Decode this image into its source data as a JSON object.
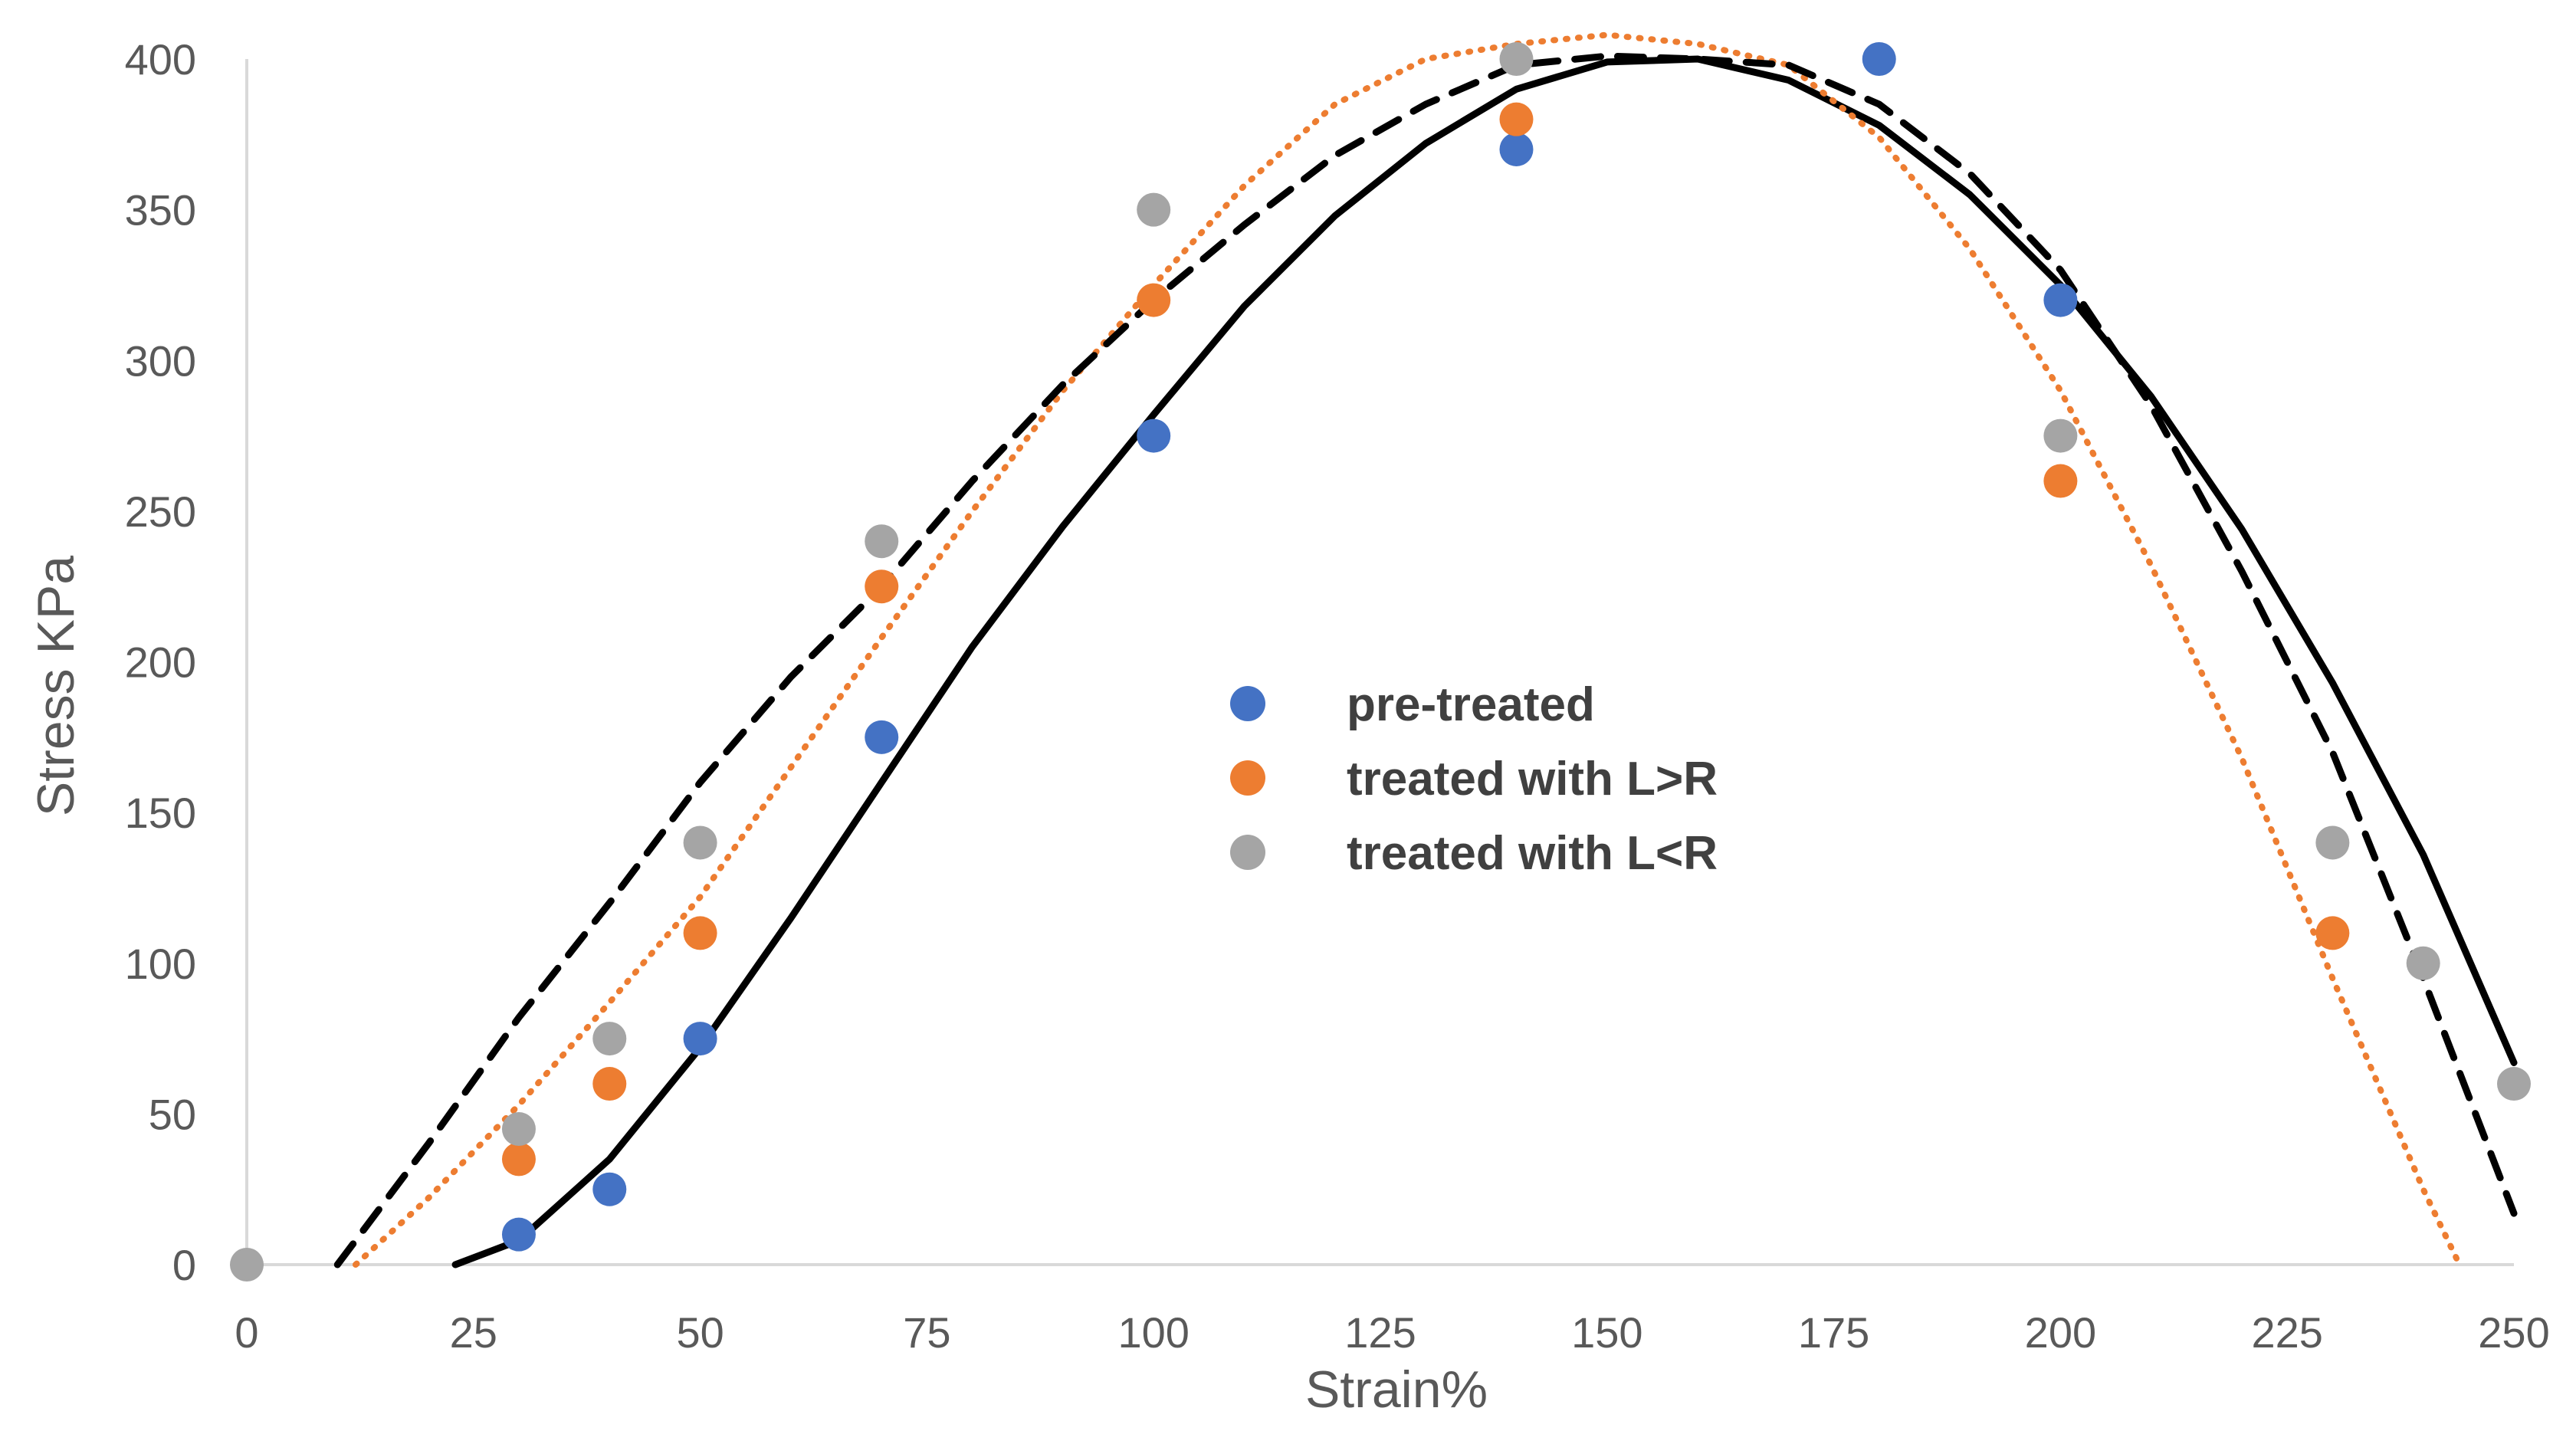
{
  "chart_data": {
    "type": "scatter",
    "title": "",
    "xlabel": "Strain%",
    "ylabel": "Stress KPa",
    "xlim": [
      0,
      250
    ],
    "ylim": [
      0,
      400
    ],
    "xticks": [
      0,
      25,
      50,
      75,
      100,
      125,
      150,
      175,
      200,
      225,
      250
    ],
    "yticks": [
      0,
      50,
      100,
      150,
      200,
      250,
      300,
      350,
      400
    ],
    "xtick_labels": [
      "0",
      "25",
      "50",
      "75",
      "100",
      "125",
      "150",
      "175",
      "200",
      "225",
      "250"
    ],
    "ytick_labels": [
      "0",
      "50",
      "100",
      "150",
      "200",
      "250",
      "300",
      "350",
      "400"
    ],
    "grid": false,
    "legend_position": "center",
    "series": [
      {
        "name": "pre-treated",
        "color": "#4472C4",
        "x": [
          30,
          40,
          50,
          70,
          100,
          140,
          180,
          200
        ],
        "y": [
          10,
          25,
          75,
          175,
          275,
          370,
          400,
          320
        ]
      },
      {
        "name": "treated with L>R",
        "color": "#ED7D31",
        "x": [
          30,
          40,
          50,
          70,
          100,
          140,
          200,
          230
        ],
        "y": [
          35,
          60,
          110,
          225,
          320,
          380,
          260,
          110
        ]
      },
      {
        "name": "treated with L<R",
        "color": "#A5A5A5",
        "x": [
          0,
          30,
          40,
          50,
          70,
          100,
          140,
          200,
          230,
          240,
          250
        ],
        "y": [
          0,
          45,
          75,
          140,
          240,
          350,
          400,
          275,
          140,
          100,
          60
        ]
      }
    ],
    "trendlines": [
      {
        "series": "pre-treated",
        "style": "solid",
        "color": "#000000",
        "x": [
          23,
          30,
          40,
          50,
          60,
          70,
          80,
          90,
          100,
          110,
          120,
          130,
          140,
          150,
          160,
          170,
          180,
          190,
          200,
          210,
          220,
          230,
          240,
          250
        ],
        "y": [
          0,
          8,
          35,
          72,
          115,
          160,
          205,
          245,
          282,
          318,
          348,
          372,
          390,
          399,
          400,
          393,
          378,
          355,
          325,
          288,
          244,
          193,
          136,
          67
        ]
      },
      {
        "series": "treated with L>R",
        "style": "dotted",
        "color": "#ED7D31",
        "x": [
          12,
          20,
          30,
          40,
          50,
          60,
          70,
          80,
          90,
          100,
          110,
          120,
          130,
          140,
          150,
          160,
          170,
          180,
          190,
          200,
          210,
          220,
          230,
          240,
          244
        ],
        "y": [
          0,
          22,
          53,
          87,
          122,
          165,
          208,
          250,
          290,
          325,
          358,
          385,
          400,
          405,
          408,
          405,
          398,
          374,
          337,
          290,
          232,
          168,
          95,
          25,
          0
        ]
      },
      {
        "series": "treated with L<R",
        "style": "dashed",
        "color": "#000000",
        "x": [
          10,
          20,
          30,
          40,
          50,
          60,
          70,
          80,
          90,
          100,
          110,
          120,
          130,
          140,
          150,
          160,
          170,
          180,
          190,
          200,
          210,
          220,
          230,
          240,
          250
        ],
        "y": [
          0,
          40,
          82,
          120,
          160,
          195,
          225,
          260,
          292,
          320,
          345,
          368,
          385,
          398,
          401,
          400,
          398,
          385,
          362,
          330,
          285,
          230,
          170,
          95,
          17
        ]
      }
    ]
  }
}
